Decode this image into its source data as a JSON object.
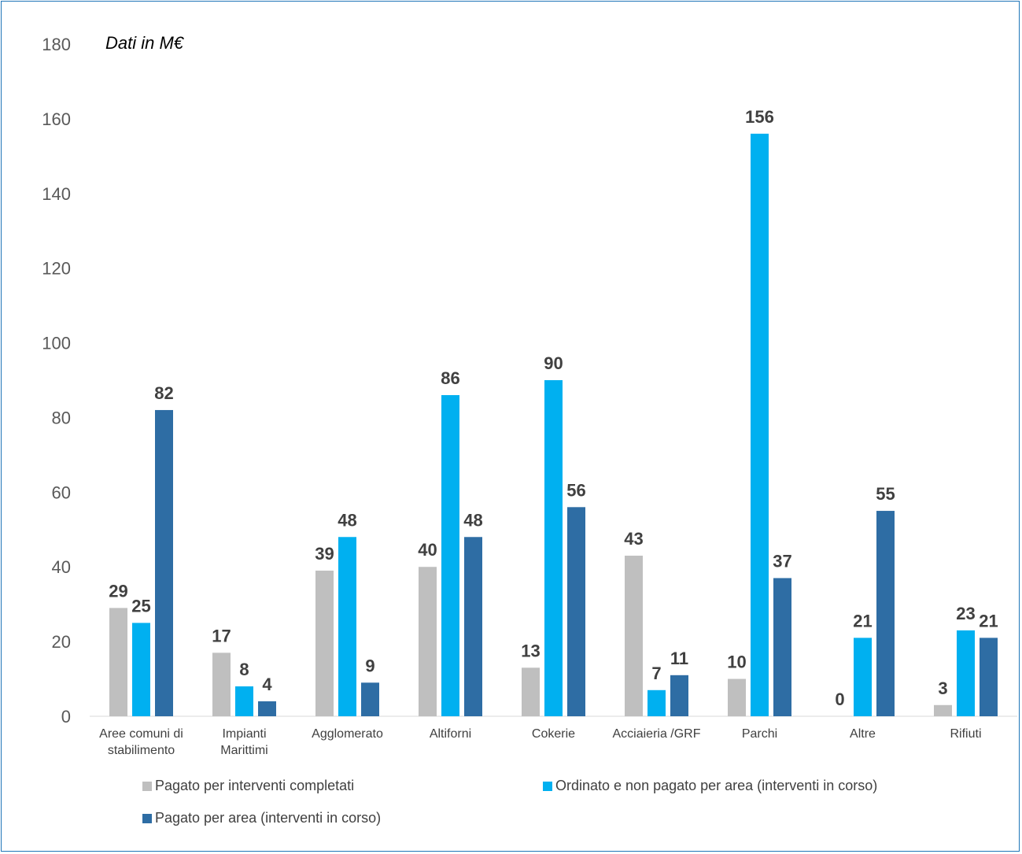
{
  "chart_data": {
    "type": "bar",
    "unit_label": "Dati in M€",
    "categories": [
      [
        "Aree comuni di",
        "stabilimento"
      ],
      [
        "Impianti",
        "Marittimi"
      ],
      [
        "Agglomerato"
      ],
      [
        "Altiforni"
      ],
      [
        "Cokerie"
      ],
      [
        "Acciaieria /GRF"
      ],
      [
        "Parchi"
      ],
      [
        "Altre"
      ],
      [
        "Rifiuti"
      ]
    ],
    "series": [
      {
        "name": "Pagato per interventi completati",
        "color": "#bfbfbf",
        "values": [
          29,
          17,
          39,
          40,
          13,
          43,
          10,
          0,
          3
        ]
      },
      {
        "name": "Ordinato e non pagato per area (interventi in corso)",
        "color": "#00b0f0",
        "values": [
          25,
          8,
          48,
          86,
          90,
          7,
          156,
          21,
          23
        ]
      },
      {
        "name": "Pagato per area (interventi in corso)",
        "color": "#2e6da4",
        "values": [
          82,
          4,
          9,
          48,
          56,
          11,
          37,
          55,
          21
        ]
      }
    ],
    "yticks": [
      "0",
      "20",
      "40",
      "60",
      "80",
      "100",
      "120",
      "140",
      "160",
      "180"
    ],
    "ylim": [
      0,
      180
    ],
    "grid": false,
    "legend_position": "bottom"
  }
}
